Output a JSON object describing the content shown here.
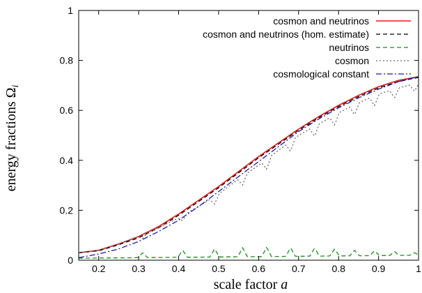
{
  "chart_data": {
    "type": "line",
    "title": "",
    "xlabel": "scale factor",
    "xlabel_var": "a",
    "ylabel": "energy fractions Ω",
    "ylabel_sub": "i",
    "xlim": [
      0.15,
      1.0
    ],
    "ylim": [
      0,
      1
    ],
    "xticks": [
      "0.2",
      "0.3",
      "0.4",
      "0.5",
      "0.6",
      "0.7",
      "0.8",
      "0.9",
      "1"
    ],
    "xtick_values": [
      0.2,
      0.3,
      0.4,
      0.5,
      0.6,
      0.7,
      0.8,
      0.9,
      1.0
    ],
    "yticks": [
      "0",
      "0.2",
      "0.4",
      "0.6",
      "0.8",
      "1"
    ],
    "ytick_values": [
      0,
      0.2,
      0.4,
      0.6,
      0.8,
      1.0
    ],
    "grid": false,
    "legend_position": "top-right",
    "series": [
      {
        "name": "cosmon and neutrinos",
        "color": "#e41a1c",
        "dash": "solid",
        "x": [
          0.15,
          0.2,
          0.25,
          0.3,
          0.35,
          0.4,
          0.45,
          0.5,
          0.55,
          0.6,
          0.65,
          0.7,
          0.75,
          0.8,
          0.85,
          0.9,
          0.95,
          1.0
        ],
        "y": [
          0.03,
          0.04,
          0.065,
          0.095,
          0.135,
          0.185,
          0.24,
          0.295,
          0.355,
          0.415,
          0.47,
          0.525,
          0.575,
          0.62,
          0.66,
          0.695,
          0.72,
          0.735
        ]
      },
      {
        "name": "cosmon and neutrinos (hom. estimate)",
        "color": "#000000",
        "dash": "dashed",
        "x": [
          0.15,
          0.2,
          0.25,
          0.3,
          0.35,
          0.4,
          0.45,
          0.5,
          0.55,
          0.6,
          0.65,
          0.7,
          0.75,
          0.8,
          0.85,
          0.9,
          0.95,
          1.0
        ],
        "y": [
          0.03,
          0.038,
          0.062,
          0.09,
          0.13,
          0.18,
          0.235,
          0.29,
          0.35,
          0.41,
          0.465,
          0.52,
          0.57,
          0.615,
          0.655,
          0.69,
          0.715,
          0.732
        ]
      },
      {
        "name": "neutrinos",
        "color": "#1a8a1a",
        "dash": "dashed",
        "baseline": 0.005,
        "peaks": [
          [
            0.31,
            0.03
          ],
          [
            0.41,
            0.04
          ],
          [
            0.49,
            0.045
          ],
          [
            0.56,
            0.05
          ],
          [
            0.62,
            0.052
          ],
          [
            0.68,
            0.05
          ],
          [
            0.74,
            0.048
          ],
          [
            0.79,
            0.045
          ],
          [
            0.84,
            0.04
          ],
          [
            0.89,
            0.038
          ],
          [
            0.94,
            0.035
          ],
          [
            0.99,
            0.03
          ]
        ],
        "x": [
          0.15,
          1.0
        ],
        "y": [
          0.005,
          0.025
        ]
      },
      {
        "name": "cosmon",
        "color": "#666666",
        "dash": "dotted",
        "x": [
          0.15,
          0.2,
          0.25,
          0.3,
          0.35,
          0.4,
          0.45,
          0.5,
          0.55,
          0.6,
          0.65,
          0.7,
          0.75,
          0.8,
          0.85,
          0.9,
          0.95,
          1.0
        ],
        "y": [
          0.03,
          0.04,
          0.065,
          0.095,
          0.13,
          0.17,
          0.215,
          0.265,
          0.325,
          0.38,
          0.44,
          0.5,
          0.545,
          0.59,
          0.63,
          0.665,
          0.69,
          0.71
        ],
        "dips": [
          [
            0.31,
            0.015
          ],
          [
            0.41,
            0.02
          ],
          [
            0.49,
            0.03
          ],
          [
            0.56,
            0.035
          ],
          [
            0.62,
            0.04
          ],
          [
            0.68,
            0.04
          ],
          [
            0.74,
            0.04
          ],
          [
            0.79,
            0.04
          ],
          [
            0.84,
            0.04
          ],
          [
            0.89,
            0.04
          ],
          [
            0.94,
            0.035
          ],
          [
            0.99,
            0.03
          ]
        ]
      },
      {
        "name": "cosmological constant",
        "color": "#1a1aa0",
        "dash": "dashdot",
        "x": [
          0.15,
          0.2,
          0.25,
          0.3,
          0.35,
          0.4,
          0.45,
          0.5,
          0.55,
          0.6,
          0.65,
          0.7,
          0.75,
          0.8,
          0.85,
          0.9,
          0.95,
          1.0
        ],
        "y": [
          0.01,
          0.025,
          0.045,
          0.075,
          0.115,
          0.16,
          0.215,
          0.275,
          0.335,
          0.395,
          0.455,
          0.515,
          0.565,
          0.61,
          0.65,
          0.685,
          0.715,
          0.735
        ]
      }
    ]
  }
}
